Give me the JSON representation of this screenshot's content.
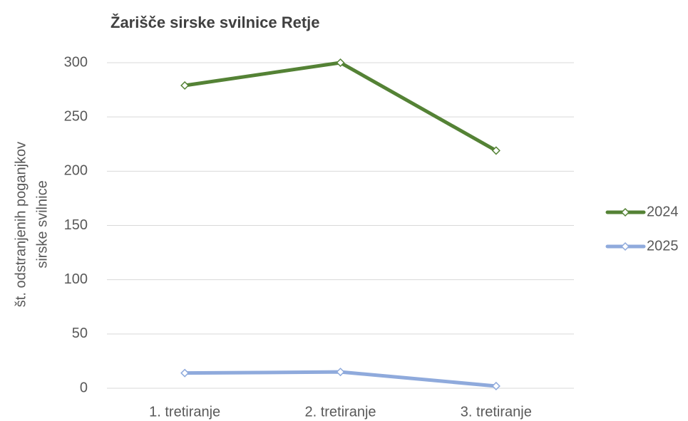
{
  "chart_data": {
    "type": "line",
    "title": "Žarišče sirske svilnice Retje",
    "ylabel": [
      "št. odstranjenih poganjkov",
      "sirske svilnice"
    ],
    "categories": [
      "1. tretiranje",
      "2. tretiranje",
      "3. tretiranje"
    ],
    "series": [
      {
        "name": "2024",
        "color": "#548235",
        "values": [
          279,
          300,
          219
        ]
      },
      {
        "name": "2025",
        "color": "#8faadc",
        "values": [
          14,
          15,
          2
        ]
      }
    ],
    "ylim": [
      0,
      300
    ],
    "yticks": [
      0,
      50,
      100,
      150,
      200,
      250,
      300
    ],
    "grid": true,
    "legend": "right"
  }
}
